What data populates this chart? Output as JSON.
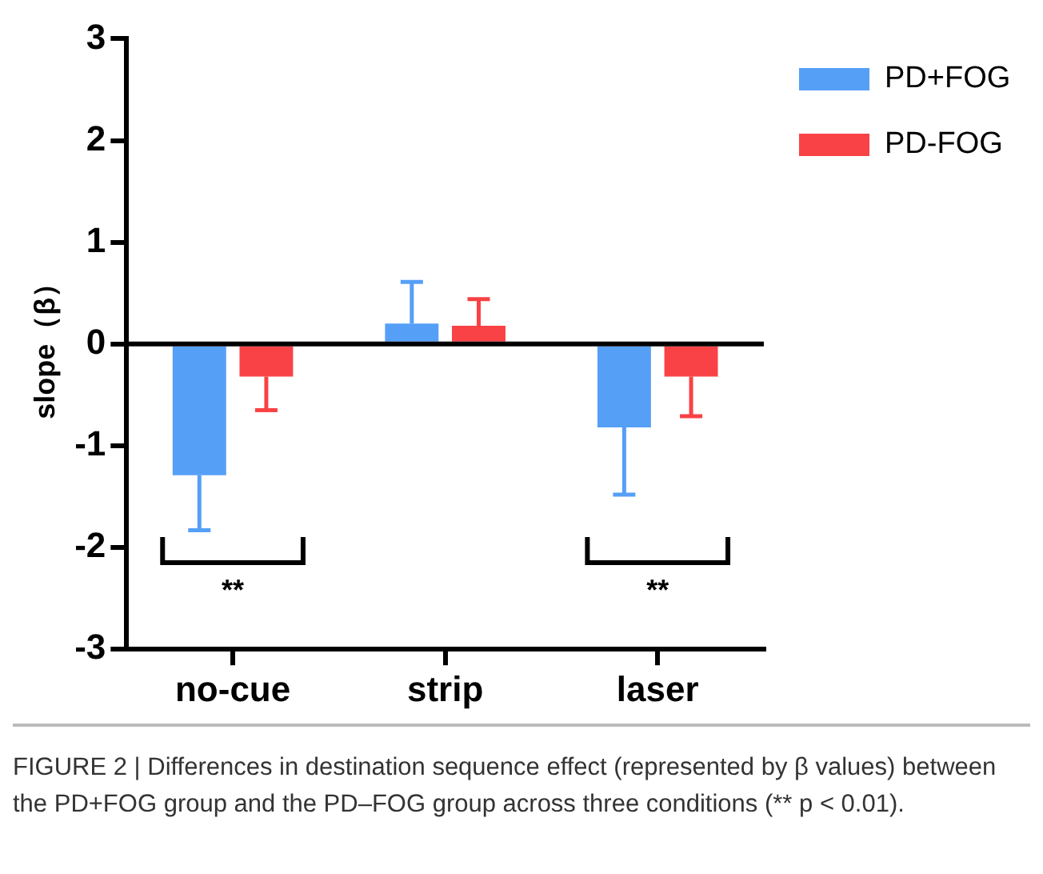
{
  "chart_data": {
    "type": "bar",
    "ylabel": "slope（β）",
    "categories": [
      "no-cue",
      "strip",
      "laser"
    ],
    "series": [
      {
        "name": "PD+FOG",
        "color": "#559ff7",
        "values": [
          -1.29,
          0.2,
          -0.82
        ],
        "errors": [
          [
            -1.83,
            -1.29
          ],
          [
            0.2,
            0.61
          ],
          [
            -1.48,
            -0.82
          ]
        ]
      },
      {
        "name": "PD-FOG",
        "color": "#f84245",
        "values": [
          -0.32,
          0.18,
          -0.32
        ],
        "errors": [
          [
            -0.65,
            -0.32
          ],
          [
            0.18,
            0.44
          ],
          [
            -0.71,
            -0.32
          ]
        ]
      }
    ],
    "ylim": [
      -3,
      3
    ],
    "yticks": [
      -3,
      -2,
      -1,
      0,
      1,
      2,
      3
    ],
    "legend": "top right",
    "ref_lines": [
      {
        "axis": "y",
        "value": 0,
        "color": "#000000"
      }
    ],
    "annotations": [
      "**",
      "**",
      "FIGURE 2 | Differences in destination sequence effect (represented by β values) between the PD+FOG group and the PD–FOG group across three conditions (** p < 0.01)."
    ]
  }
}
